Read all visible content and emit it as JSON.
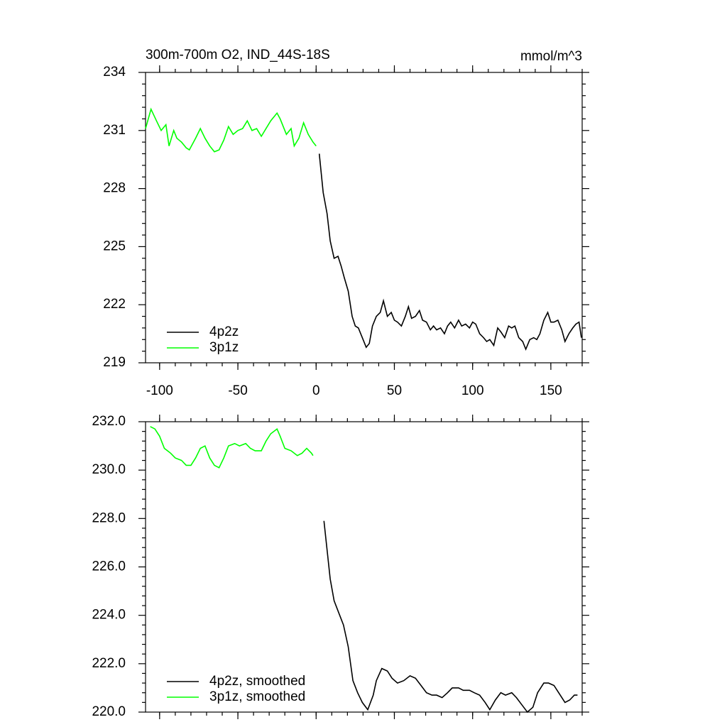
{
  "chart_data": [
    {
      "type": "line",
      "title": "300m-700m O2, IND_44S-18S",
      "unit": "mmol/m^3",
      "xlim": [
        -109,
        170
      ],
      "xticks": [
        -100,
        -50,
        0,
        50,
        100,
        150
      ],
      "ylim": [
        219,
        234
      ],
      "yticks": [
        219,
        222,
        225,
        228,
        231,
        234
      ],
      "legend": "lower left",
      "series": [
        {
          "name": "4p2z",
          "color": "#000000",
          "x": [
            2,
            4.5,
            7,
            9,
            11.5,
            14,
            16,
            18,
            20.5,
            23,
            25,
            27,
            29.5,
            32,
            34,
            36,
            38.5,
            41,
            43,
            45.5,
            48,
            50,
            52,
            54.5,
            57,
            59,
            61,
            63.5,
            66,
            68,
            70.5,
            73,
            75,
            77,
            79.5,
            82,
            84,
            86,
            88.5,
            91,
            93,
            95.5,
            98,
            100,
            102,
            104.5,
            107,
            109,
            111,
            113.5,
            116,
            118,
            120.5,
            123,
            125,
            127,
            129.5,
            132,
            134,
            136.5,
            139,
            141,
            143,
            145.5,
            148,
            150,
            152,
            154.5,
            157,
            159,
            161.5,
            164,
            166,
            168,
            169.5
          ],
          "values": [
            229.8,
            227.8,
            226.7,
            225.3,
            224.4,
            224.5,
            224.0,
            223.4,
            222.7,
            221.4,
            220.9,
            220.8,
            220.3,
            219.8,
            220.0,
            220.9,
            221.4,
            221.6,
            222.2,
            221.4,
            221.6,
            221.2,
            221.1,
            220.9,
            221.4,
            221.9,
            221.3,
            221.4,
            221.7,
            221.2,
            221.1,
            220.7,
            220.9,
            220.7,
            220.8,
            220.5,
            220.9,
            221.1,
            220.8,
            221.2,
            220.9,
            221.0,
            220.8,
            221.1,
            221.0,
            220.5,
            220.3,
            220.1,
            220.2,
            219.9,
            220.8,
            220.6,
            220.3,
            220.9,
            220.8,
            220.9,
            220.3,
            220.1,
            219.7,
            220.2,
            220.3,
            220.2,
            220.5,
            221.2,
            221.6,
            221.1,
            221.1,
            221.2,
            220.7,
            220.1,
            220.5,
            220.8,
            221.0,
            221.1,
            220.3
          ]
        },
        {
          "name": "3p1z",
          "color": "#00ff00",
          "x": [
            -109,
            -105.5,
            -102,
            -99,
            -96,
            -94,
            -91,
            -89,
            -86,
            -83,
            -81,
            -77,
            -74,
            -71,
            -68,
            -65,
            -62,
            -59,
            -56,
            -53,
            -50,
            -47,
            -44,
            -41,
            -38,
            -35,
            -32,
            -29,
            -25,
            -23,
            -19,
            -16,
            -14,
            -11,
            -8,
            -5,
            -2,
            0
          ],
          "values": [
            231.1,
            232.1,
            231.5,
            231.0,
            231.3,
            230.2,
            231.0,
            230.6,
            230.4,
            230.1,
            230.0,
            230.6,
            231.1,
            230.6,
            230.2,
            229.9,
            230.0,
            230.5,
            231.2,
            230.8,
            231.0,
            231.1,
            231.5,
            231.0,
            231.1,
            230.7,
            231.1,
            231.5,
            231.9,
            231.6,
            230.8,
            231.1,
            230.2,
            230.6,
            231.4,
            230.8,
            230.4,
            230.2
          ]
        }
      ]
    },
    {
      "type": "line",
      "xlim": [
        -109,
        170
      ],
      "xticks": [
        -100,
        -50,
        0,
        50,
        100,
        150
      ],
      "ylim": [
        220,
        232
      ],
      "yticks": [
        {
          "value": 220,
          "label": "220.0"
        },
        {
          "value": 222,
          "label": "222.0"
        },
        {
          "value": 224,
          "label": "224.0"
        },
        {
          "value": 226,
          "label": "226.0"
        },
        {
          "value": 228,
          "label": "228.0"
        },
        {
          "value": 230,
          "label": "230.0"
        },
        {
          "value": 232,
          "label": "232.0"
        }
      ],
      "legend": "lower left",
      "series": [
        {
          "name": "4p2z, smoothed",
          "color": "#000000",
          "x": [
            5,
            7,
            9,
            11.5,
            14.5,
            17.5,
            20.5,
            23.5,
            26.5,
            29.5,
            33,
            36.5,
            38.5,
            42,
            45.5,
            48.5,
            52,
            56,
            60,
            63.5,
            67,
            70.5,
            74,
            77,
            80.5,
            84,
            87,
            91,
            94,
            98,
            101,
            104.5,
            108,
            111,
            114.5,
            118,
            121,
            125,
            128,
            131.5,
            135,
            138.5,
            141.5,
            145.5,
            148.5,
            152,
            155,
            159,
            162,
            165,
            167
          ],
          "values": [
            227.9,
            226.7,
            225.5,
            224.6,
            224.1,
            223.6,
            222.7,
            221.3,
            220.8,
            220.4,
            220.1,
            220.7,
            221.3,
            221.8,
            221.7,
            221.4,
            221.2,
            221.3,
            221.5,
            221.4,
            221.1,
            220.8,
            220.7,
            220.7,
            220.6,
            220.8,
            221.0,
            221.0,
            220.9,
            220.9,
            220.8,
            220.7,
            220.4,
            220.1,
            220.5,
            220.8,
            220.7,
            220.8,
            220.6,
            220.3,
            220.0,
            220.2,
            220.8,
            221.2,
            221.2,
            221.1,
            220.8,
            220.4,
            220.5,
            220.7,
            220.7
          ]
        },
        {
          "name": "3p1z, smoothed",
          "color": "#00ff00",
          "x": [
            -106,
            -103,
            -100,
            -97,
            -93,
            -90,
            -86,
            -83,
            -80,
            -77,
            -74,
            -71,
            -68,
            -65,
            -62,
            -59,
            -56,
            -52,
            -49,
            -45,
            -42,
            -39,
            -35,
            -32,
            -29,
            -25,
            -23,
            -20,
            -16,
            -12,
            -9,
            -6,
            -3,
            -2
          ],
          "values": [
            231.8,
            231.7,
            231.4,
            230.9,
            230.7,
            230.5,
            230.4,
            230.2,
            230.2,
            230.5,
            230.9,
            231.0,
            230.5,
            230.2,
            230.1,
            230.5,
            231.0,
            231.1,
            231.0,
            231.1,
            230.9,
            230.8,
            230.8,
            231.2,
            231.5,
            231.7,
            231.4,
            230.9,
            230.8,
            230.6,
            230.7,
            230.9,
            230.7,
            230.6
          ]
        }
      ]
    }
  ]
}
